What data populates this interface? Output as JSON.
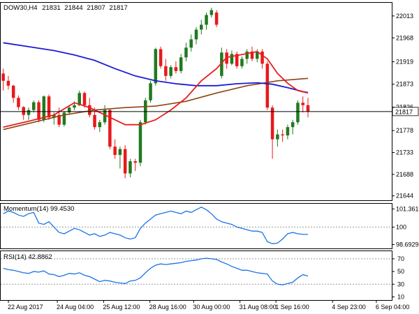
{
  "chart_data": {
    "type": "candlestick",
    "header": {
      "symbol": "DOW30,H4",
      "ohlc": [
        "21831",
        "21844",
        "21807",
        "21817"
      ]
    },
    "colors": {
      "up": "#1f7a1f",
      "down": "#e8191c",
      "ma_fast": "#ea1c1c",
      "ma_mid": "#1b1bd6",
      "ma_slow": "#8b4513",
      "indicator": "#1a73e8",
      "reference": "#999999"
    },
    "price": {
      "ylim": [
        21635,
        22040
      ],
      "yticks": [
        22013,
        21968,
        21919,
        21873,
        21826,
        21778,
        21733,
        21688,
        21644
      ],
      "current": 21817,
      "current_label": "21817",
      "ohlc": [
        [
          21895,
          21905,
          21860,
          21880
        ],
        [
          21880,
          21890,
          21862,
          21870
        ],
        [
          21870,
          21872,
          21835,
          21845
        ],
        [
          21845,
          21850,
          21820,
          21826
        ],
        [
          21826,
          21828,
          21800,
          21810
        ],
        [
          21810,
          21825,
          21800,
          21820
        ],
        [
          21820,
          21840,
          21815,
          21836
        ],
        [
          21836,
          21840,
          21795,
          21800
        ],
        [
          21800,
          21850,
          21795,
          21848
        ],
        [
          21848,
          21852,
          21800,
          21805
        ],
        [
          21805,
          21815,
          21790,
          21810
        ],
        [
          21810,
          21825,
          21785,
          21790
        ],
        [
          21790,
          21818,
          21786,
          21815
        ],
        [
          21815,
          21830,
          21810,
          21825
        ],
        [
          21825,
          21838,
          21820,
          21830
        ],
        [
          21830,
          21860,
          21828,
          21855
        ],
        [
          21855,
          21858,
          21825,
          21830
        ],
        [
          21830,
          21845,
          21805,
          21810
        ],
        [
          21810,
          21825,
          21780,
          21785
        ],
        [
          21785,
          21800,
          21775,
          21795
        ],
        [
          21795,
          21830,
          21790,
          21820
        ],
        [
          21820,
          21822,
          21740,
          21745
        ],
        [
          21745,
          21760,
          21720,
          21728
        ],
        [
          21728,
          21745,
          21700,
          21740
        ],
        [
          21740,
          21748,
          21680,
          21690
        ],
        [
          21690,
          21720,
          21682,
          21715
        ],
        [
          21715,
          21720,
          21695,
          21712
        ],
        [
          21712,
          21800,
          21705,
          21795
        ],
        [
          21795,
          21845,
          21790,
          21840
        ],
        [
          21840,
          21880,
          21835,
          21875
        ],
        [
          21875,
          21948,
          21870,
          21945
        ],
        [
          21945,
          21950,
          21905,
          21910
        ],
        [
          21910,
          21925,
          21880,
          21890
        ],
        [
          21890,
          21912,
          21885,
          21908
        ],
        [
          21908,
          21920,
          21895,
          21900
        ],
        [
          21900,
          21935,
          21895,
          21928
        ],
        [
          21928,
          21958,
          21920,
          21948
        ],
        [
          21948,
          21975,
          21940,
          21965
        ],
        [
          21965,
          21990,
          21955,
          21985
        ],
        [
          21985,
          22005,
          21975,
          21995
        ],
        [
          21995,
          22020,
          21985,
          22015
        ],
        [
          22015,
          22030,
          22010,
          22025
        ],
        [
          22020,
          22025,
          21990,
          21995
        ],
        [
          21890,
          21948,
          21885,
          21938
        ],
        [
          21938,
          21945,
          21905,
          21915
        ],
        [
          21915,
          21942,
          21912,
          21935
        ],
        [
          21935,
          21940,
          21905,
          21910
        ],
        [
          21910,
          21930,
          21905,
          21925
        ],
        [
          21925,
          21945,
          21915,
          21940
        ],
        [
          21940,
          21950,
          21920,
          21925
        ],
        [
          21925,
          21945,
          21918,
          21940
        ],
        [
          21940,
          21945,
          21905,
          21915
        ],
        [
          21915,
          21920,
          21820,
          21825
        ],
        [
          21825,
          21830,
          21720,
          21760
        ],
        [
          21760,
          21780,
          21745,
          21770
        ],
        [
          21770,
          21780,
          21755,
          21768
        ],
        [
          21768,
          21790,
          21760,
          21785
        ],
        [
          21785,
          21800,
          21770,
          21795
        ],
        [
          21795,
          21840,
          21790,
          21835
        ],
        [
          21835,
          21848,
          21815,
          21830
        ],
        [
          21830,
          21845,
          21805,
          21817
        ]
      ],
      "ma_fast": [
        [
          0,
          21785
        ],
        [
          5,
          21797
        ],
        [
          10,
          21810
        ],
        [
          14,
          21835
        ],
        [
          17,
          21825
        ],
        [
          20,
          21810
        ],
        [
          24,
          21790
        ],
        [
          27,
          21790
        ],
        [
          30,
          21800
        ],
        [
          33,
          21820
        ],
        [
          36,
          21845
        ],
        [
          39,
          21880
        ],
        [
          42,
          21905
        ],
        [
          44,
          21928
        ],
        [
          47,
          21934
        ],
        [
          50,
          21940
        ],
        [
          52,
          21925
        ],
        [
          54,
          21895
        ],
        [
          56,
          21875
        ],
        [
          58,
          21860
        ],
        [
          60,
          21855
        ]
      ],
      "ma_mid": [
        [
          0,
          21958
        ],
        [
          5,
          21950
        ],
        [
          10,
          21942
        ],
        [
          14,
          21933
        ],
        [
          18,
          21922
        ],
        [
          22,
          21905
        ],
        [
          26,
          21890
        ],
        [
          30,
          21880
        ],
        [
          34,
          21874
        ],
        [
          38,
          21870
        ],
        [
          42,
          21870
        ],
        [
          46,
          21874
        ],
        [
          50,
          21876
        ],
        [
          53,
          21873
        ],
        [
          56,
          21866
        ],
        [
          59,
          21858
        ],
        [
          60,
          21856
        ]
      ],
      "ma_slow": [
        [
          0,
          21780
        ],
        [
          6,
          21795
        ],
        [
          12,
          21810
        ],
        [
          18,
          21820
        ],
        [
          24,
          21825
        ],
        [
          30,
          21828
        ],
        [
          36,
          21838
        ],
        [
          42,
          21855
        ],
        [
          48,
          21870
        ],
        [
          54,
          21880
        ],
        [
          60,
          21885
        ]
      ]
    },
    "momentum": {
      "label": "Momentum(14) 99.4530",
      "ylim": [
        98.4,
        101.75
      ],
      "yticks": [
        101.3616,
        100,
        98.6929
      ],
      "ytick_labels": [
        "101.3616",
        "100",
        "98.6929"
      ],
      "reference": 100,
      "values": [
        101.0,
        101.2,
        101.1,
        100.9,
        100.8,
        101.0,
        101.1,
        100.3,
        100.2,
        100.4,
        100.0,
        99.6,
        99.5,
        99.7,
        99.9,
        99.8,
        99.6,
        99.4,
        99.5,
        99.3,
        99.4,
        99.6,
        99.5,
        99.4,
        99.2,
        99.1,
        99.2,
        99.9,
        100.3,
        100.6,
        100.9,
        101.0,
        101.1,
        101.2,
        101.1,
        101.0,
        101.2,
        101.1,
        101.3,
        101.5,
        101.3,
        101.0,
        100.6,
        100.4,
        100.3,
        100.2,
        100.0,
        99.9,
        99.8,
        99.7,
        99.7,
        99.6,
        98.9,
        98.75,
        98.8,
        99.1,
        99.5,
        99.6,
        99.5,
        99.45,
        99.453
      ]
    },
    "rsi": {
      "label": "RSI(14) 42.8862",
      "ylim": [
        5,
        82
      ],
      "yticks": [
        70,
        50,
        30,
        10
      ],
      "reference": [
        70,
        30
      ],
      "values": [
        55,
        53,
        52,
        50,
        48,
        47,
        50,
        49,
        51,
        46,
        45,
        42,
        44,
        47,
        46,
        48,
        44,
        42,
        38,
        34,
        36,
        35,
        33,
        32,
        31,
        35,
        36,
        40,
        48,
        55,
        60,
        62,
        61,
        62,
        63,
        64,
        66,
        67,
        68,
        70,
        71,
        70,
        69,
        65,
        62,
        58,
        55,
        52,
        52,
        50,
        48,
        47,
        46,
        35,
        30,
        29,
        31,
        33,
        40,
        45,
        42.8862
      ]
    },
    "x_labels": [
      {
        "index": 1.5,
        "text": "22 Aug 2017"
      },
      {
        "index": 11,
        "text": "24 Aug 04:00"
      },
      {
        "index": 20,
        "text": "25 Aug 12:00"
      },
      {
        "index": 29,
        "text": "28 Aug 16:00"
      },
      {
        "index": 37.5,
        "text": "30 Aug 00:00"
      },
      {
        "index": 46.5,
        "text": "31 Aug 08:00"
      },
      {
        "index": 53.5,
        "text": "1 Sep 16:00"
      },
      {
        "index": 64.5,
        "text": "4 Sep 23:00"
      },
      {
        "index": 73,
        "text": "6 Sep 04:00"
      }
    ],
    "x_index_range": [
      0,
      76
    ]
  }
}
